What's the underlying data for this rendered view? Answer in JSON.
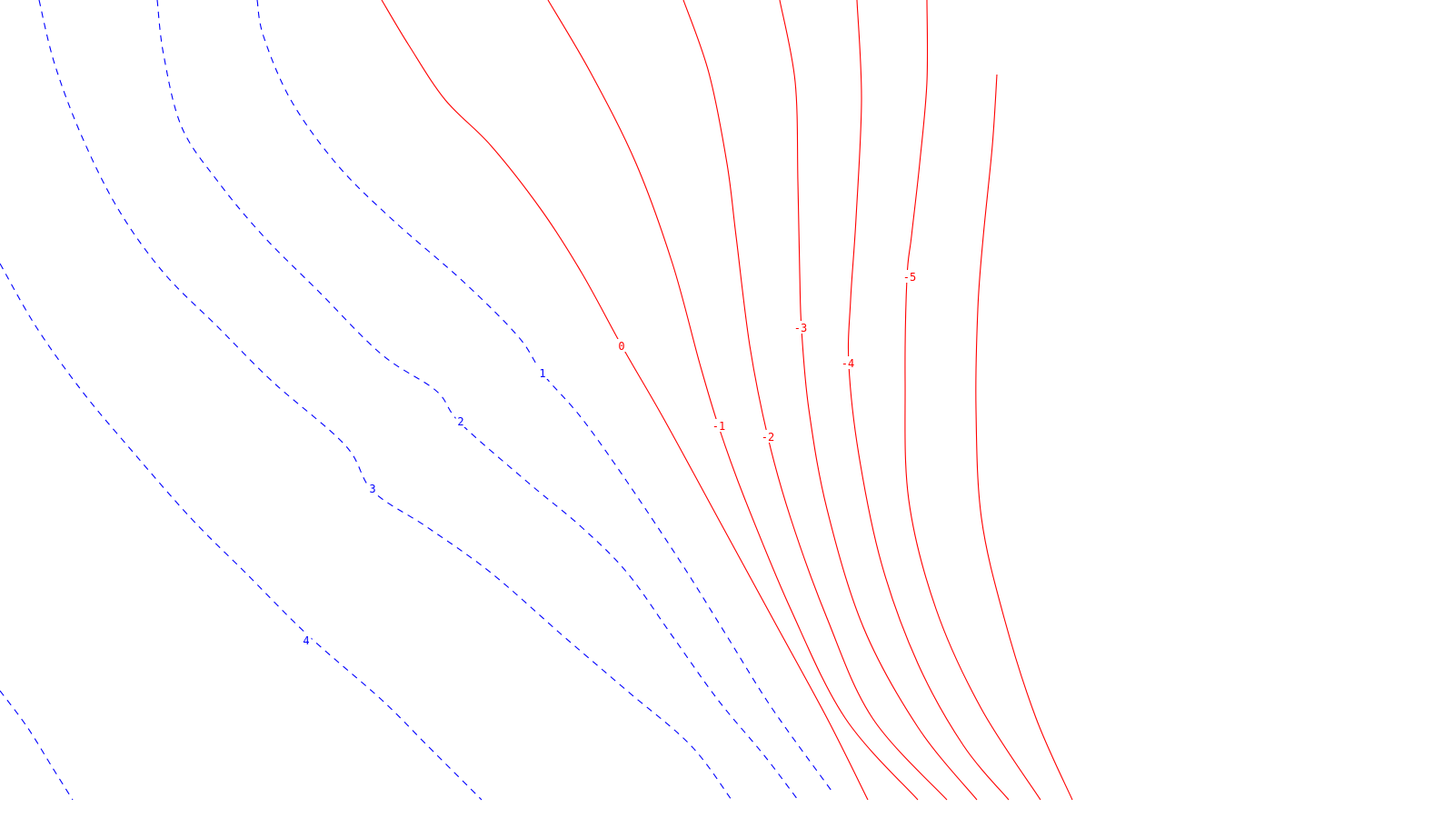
{
  "chart_data": {
    "type": "contour",
    "title": "",
    "xlabel": "",
    "ylabel": "",
    "grid": false,
    "legend": "none",
    "colors": {
      "positive": "#0000ff",
      "negative": "#ff0000",
      "background": "#ffffff"
    },
    "line_styles": {
      "positive": "dashed",
      "negative": "solid"
    },
    "levels": [
      {
        "value": 4,
        "label": "4",
        "sign": "positive"
      },
      {
        "value": 3,
        "label": "3",
        "sign": "positive"
      },
      {
        "value": 2,
        "label": "2",
        "sign": "positive"
      },
      {
        "value": 1,
        "label": "1",
        "sign": "positive"
      },
      {
        "value": 0,
        "label": "0",
        "sign": "negative"
      },
      {
        "value": -1,
        "label": "-1",
        "sign": "negative"
      },
      {
        "value": -2,
        "label": "-2",
        "sign": "negative"
      },
      {
        "value": -3,
        "label": "-3",
        "sign": "negative"
      },
      {
        "value": -4,
        "label": "-4",
        "sign": "negative"
      },
      {
        "value": -5,
        "label": "-5",
        "sign": "negative"
      },
      {
        "value": -6,
        "label": "",
        "sign": "negative"
      }
    ],
    "extra_contours": [
      {
        "value": 5,
        "label": "",
        "sign": "positive"
      }
    ]
  }
}
